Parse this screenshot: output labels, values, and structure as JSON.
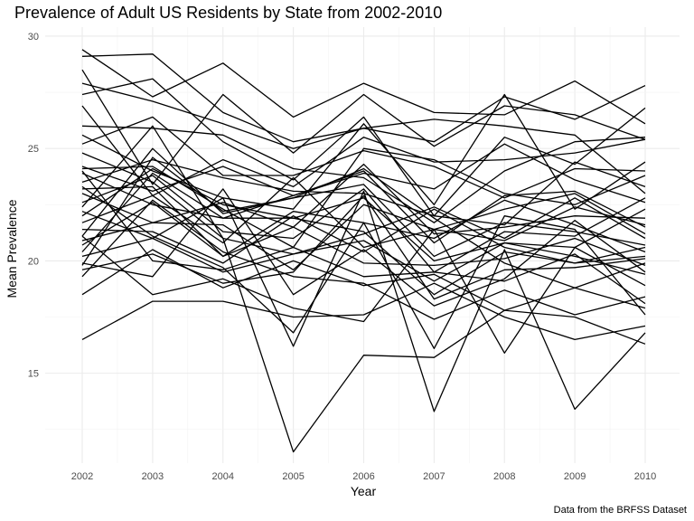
{
  "chart_data": {
    "type": "line",
    "title": "Prevalence of Adult US Residents by State from 2002-2010",
    "xlabel": "Year",
    "ylabel": "Mean Prevalence",
    "caption": "Data from the BRFSS Dataset",
    "x": [
      2002,
      2003,
      2004,
      2005,
      2006,
      2007,
      2008,
      2009,
      2010
    ],
    "xlim": [
      2002,
      2010
    ],
    "ylim": [
      11.0,
      30.4
    ],
    "y_ticks": [
      15,
      20,
      25,
      30
    ],
    "grid": true,
    "line_color": "#000000",
    "series": [
      {
        "values": [
          29.4,
          27.3,
          28.8,
          26.4,
          27.9,
          26.6,
          26.5,
          28.0,
          26.1
        ]
      },
      {
        "values": [
          29.1,
          29.2,
          26.6,
          25.3,
          25.9,
          25.3,
          27.3,
          26.3,
          27.8
        ]
      },
      {
        "values": [
          28.5,
          23.4,
          27.4,
          24.8,
          27.4,
          25.1,
          26.9,
          26.5,
          25.4
        ]
      },
      {
        "values": [
          27.9,
          27.1,
          26.1,
          25.0,
          25.9,
          26.3,
          26.0,
          25.6,
          23.0
        ]
      },
      {
        "values": [
          27.4,
          28.1,
          25.3,
          23.6,
          26.4,
          22.0,
          25.5,
          24.3,
          26.8
        ]
      },
      {
        "values": [
          26.9,
          22.9,
          24.5,
          23.3,
          25.5,
          24.4,
          24.5,
          24.8,
          25.4
        ]
      },
      {
        "values": [
          26.0,
          25.9,
          25.6,
          24.1,
          23.7,
          21.7,
          24.0,
          25.3,
          25.5
        ]
      },
      {
        "values": [
          25.6,
          24.0,
          22.8,
          22.3,
          26.1,
          22.5,
          27.4,
          22.3,
          24.4
        ]
      },
      {
        "values": [
          25.2,
          26.4,
          23.8,
          23.8,
          24.9,
          24.2,
          22.8,
          24.1,
          24.0
        ]
      },
      {
        "values": [
          24.2,
          23.1,
          24.2,
          22.9,
          23.9,
          23.2,
          25.2,
          23.6,
          22.6
        ]
      },
      {
        "values": [
          24.1,
          24.2,
          22.3,
          20.6,
          25.0,
          24.5,
          23.0,
          22.5,
          23.8
        ]
      },
      {
        "values": [
          23.9,
          22.5,
          21.9,
          22.9,
          24.0,
          20.8,
          22.9,
          23.1,
          21.5
        ]
      },
      {
        "values": [
          23.5,
          24.5,
          23.7,
          23.1,
          23.0,
          22.0,
          21.6,
          24.4,
          23.3
        ]
      },
      {
        "values": [
          23.2,
          23.3,
          20.2,
          22.2,
          21.7,
          21.0,
          22.7,
          21.6,
          20.4
        ]
      },
      {
        "values": [
          23.0,
          21.7,
          22.6,
          21.5,
          24.3,
          21.2,
          21.5,
          22.0,
          21.9
        ]
      },
      {
        "values": [
          22.6,
          23.8,
          21.3,
          21.0,
          23.2,
          19.5,
          21.3,
          21.1,
          22.8
        ]
      },
      {
        "values": [
          22.4,
          26.0,
          21.0,
          20.3,
          21.2,
          22.4,
          21.0,
          22.8,
          21.0
        ]
      },
      {
        "values": [
          22.0,
          24.1,
          22.5,
          21.9,
          22.8,
          20.0,
          20.8,
          20.6,
          22.3
        ]
      },
      {
        "values": [
          21.7,
          22.9,
          20.8,
          23.7,
          20.6,
          21.4,
          22.3,
          23.0,
          21.2
        ]
      },
      {
        "values": [
          21.4,
          21.3,
          19.9,
          22.0,
          20.4,
          22.3,
          20.6,
          19.9,
          20.2
        ]
      },
      {
        "values": [
          21.1,
          25.0,
          22.1,
          22.8,
          23.4,
          20.2,
          21.7,
          21.3,
          20.7
        ]
      },
      {
        "values": [
          20.9,
          21.7,
          21.6,
          19.6,
          22.5,
          21.4,
          20.9,
          22.4,
          21.6
        ]
      },
      {
        "values": [
          20.7,
          22.6,
          20.2,
          21.5,
          19.9,
          19.8,
          20.1,
          21.0,
          19.8
        ]
      },
      {
        "values": [
          20.4,
          23.9,
          21.9,
          21.9,
          21.3,
          18.5,
          20.4,
          19.9,
          20.6
        ]
      },
      {
        "values": [
          20.2,
          21.0,
          19.5,
          20.3,
          20.9,
          19.1,
          20.8,
          20.2,
          19.4
        ]
      },
      {
        "values": [
          19.8,
          24.6,
          22.2,
          22.8,
          24.1,
          21.9,
          19.9,
          18.8,
          19.9
        ]
      },
      {
        "values": [
          19.6,
          20.3,
          19.0,
          19.5,
          22.9,
          18.3,
          19.6,
          19.7,
          20.1
        ]
      },
      {
        "values": [
          19.3,
          22.7,
          20.4,
          19.3,
          19.0,
          17.4,
          18.7,
          17.6,
          18.4
        ]
      },
      {
        "values": [
          18.5,
          20.5,
          18.8,
          20.0,
          18.9,
          19.4,
          17.8,
          18.8,
          17.9
        ]
      },
      {
        "values": [
          16.5,
          18.2,
          18.2,
          17.5,
          17.6,
          19.0,
          17.5,
          16.5,
          17.1
        ]
      },
      {
        "values": [
          24.8,
          23.5,
          21.0,
          11.5,
          15.8,
          15.7,
          17.8,
          17.5,
          16.3
        ]
      },
      {
        "values": [
          22.2,
          21.0,
          22.8,
          16.2,
          23.1,
          13.3,
          20.5,
          13.4,
          16.8
        ]
      },
      {
        "values": [
          23.3,
          21.1,
          19.7,
          16.8,
          21.7,
          16.1,
          22.0,
          21.4,
          17.6
        ]
      },
      {
        "values": [
          21.1,
          18.5,
          19.2,
          17.9,
          17.3,
          21.4,
          15.9,
          20.6,
          18.9
        ]
      },
      {
        "values": [
          19.9,
          19.3,
          23.2,
          18.5,
          20.5,
          18.0,
          19.2,
          21.8,
          19.5
        ]
      },
      {
        "values": [
          24.0,
          20.0,
          19.6,
          20.6,
          19.3,
          19.5,
          19.1,
          20.3,
          18.1
        ]
      }
    ]
  }
}
